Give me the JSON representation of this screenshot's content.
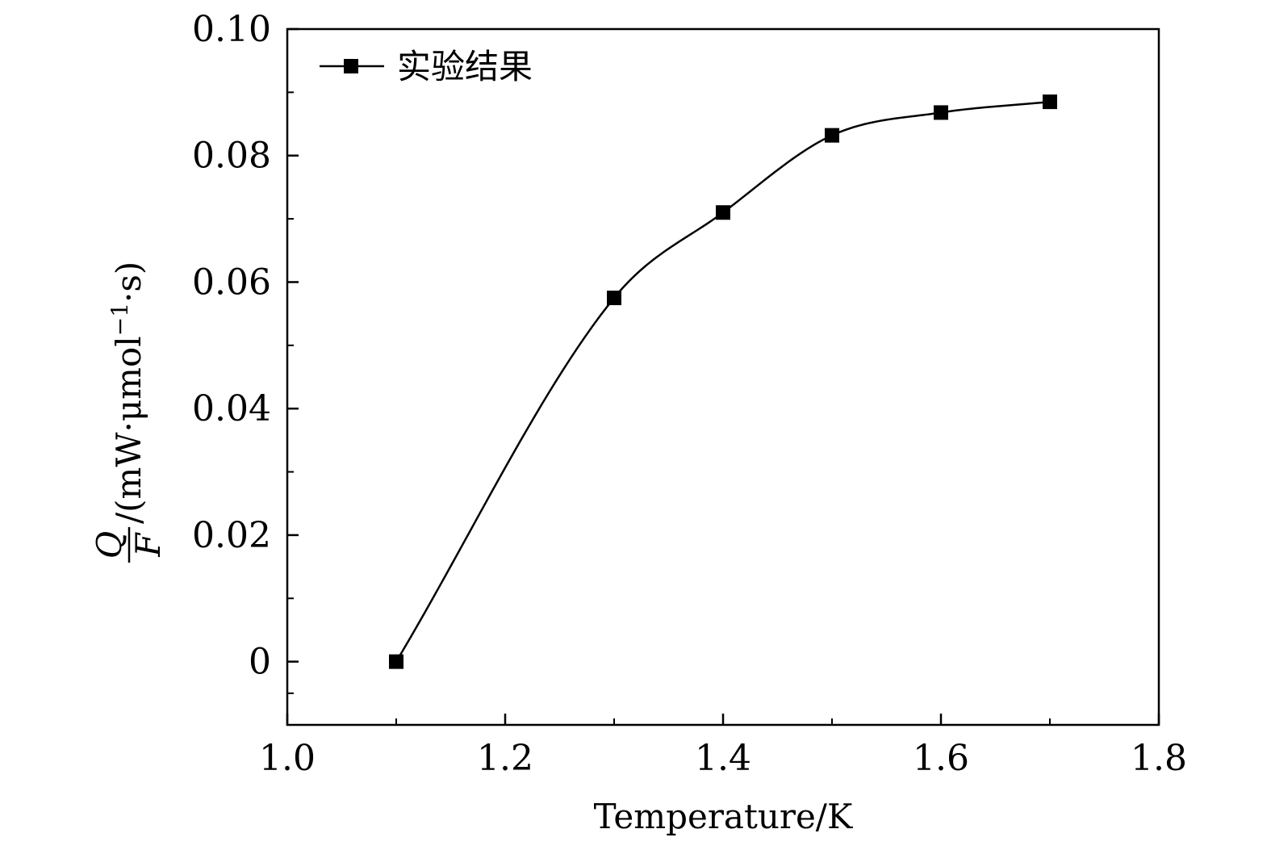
{
  "chart_data": {
    "type": "line",
    "xlabel": "Temperature/K",
    "ylabel": {
      "numerator": "Q",
      "denominator": "F",
      "unit_prefix": "/(mW·μmol",
      "unit_sup": "−1",
      "unit_suffix": "·s)"
    },
    "xlim": [
      1.0,
      1.8
    ],
    "ylim": [
      -0.01,
      0.1
    ],
    "x_ticks": [
      1.0,
      1.2,
      1.4,
      1.6,
      1.8
    ],
    "x_tick_labels": [
      "1.0",
      "1.2",
      "1.4",
      "1.6",
      "1.8"
    ],
    "y_ticks": [
      0,
      0.02,
      0.04,
      0.06,
      0.08,
      0.1
    ],
    "y_tick_labels": [
      "0",
      "0.02",
      "0.04",
      "0.06",
      "0.08",
      "0.10"
    ],
    "grid": false,
    "legend_position": "top-left",
    "series": [
      {
        "name": "实验结果",
        "marker": "square",
        "line": "smooth",
        "color": "#000000",
        "x": [
          1.1,
          1.3,
          1.4,
          1.5,
          1.6,
          1.7
        ],
        "y": [
          0.0,
          0.0575,
          0.071,
          0.0832,
          0.0868,
          0.0885
        ]
      }
    ]
  }
}
